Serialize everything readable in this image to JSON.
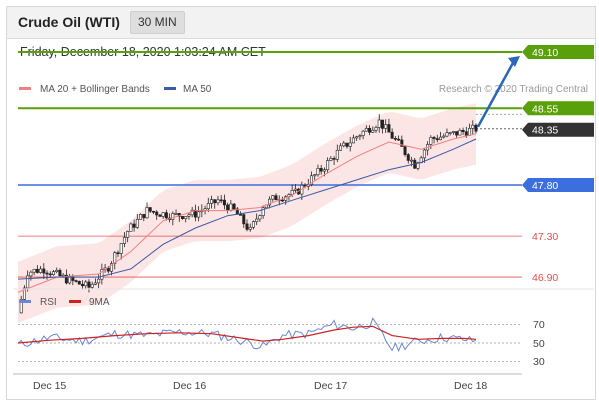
{
  "header": {
    "title": "Crude Oil (WTI)",
    "interval": "30 MIN"
  },
  "datetime": "Friday, December 18, 2020 1:03:24 AM CET",
  "legend": {
    "item1": "MA 20 + Bollinger Bands",
    "item2": "MA 50",
    "credit": "Research © 2020 Trading Central"
  },
  "colors": {
    "ma20": "#f08080",
    "bands": "#fbdcdc",
    "ma50": "#3b5aa8",
    "support": "#3b6fe0",
    "resistance": "#5aa00a",
    "red_level": "#e05050",
    "rsi": "#6a86d8",
    "rsi_ma": "#cc2222",
    "arrow": "#2c66b8"
  },
  "levels": {
    "r2": {
      "label": "49.10"
    },
    "r1": {
      "label": "48.55"
    },
    "last": {
      "label": "48.35"
    },
    "s1": {
      "label": "47.80"
    },
    "s2": {
      "label": "47.30"
    },
    "s3": {
      "label": "46.90"
    }
  },
  "rsi_legend": {
    "item1": "RSI",
    "item2": "9MA"
  },
  "rsi_ticks": [
    "70",
    "50",
    "30"
  ],
  "x_labels": [
    "Dec 15",
    "Dec 16",
    "Dec 17",
    "Dec 18"
  ],
  "chart_data": {
    "type": "candlestick",
    "instrument": "Crude Oil (WTI)",
    "interval": "30 MIN",
    "x": [
      "Dec 15",
      "Dec 16",
      "Dec 17",
      "Dec 18"
    ],
    "price_levels": [
      49.1,
      48.55,
      48.35,
      47.8,
      47.3,
      46.9
    ],
    "price_path": [
      [
        0,
        46.55
      ],
      [
        3,
        46.95
      ],
      [
        8,
        46.98
      ],
      [
        15,
        46.88
      ],
      [
        22,
        46.8
      ],
      [
        28,
        47.0
      ],
      [
        34,
        47.35
      ],
      [
        40,
        47.55
      ],
      [
        48,
        47.5
      ],
      [
        55,
        47.52
      ],
      [
        62,
        47.65
      ],
      [
        67,
        47.55
      ],
      [
        72,
        47.35
      ],
      [
        76,
        47.6
      ],
      [
        80,
        47.68
      ],
      [
        86,
        47.72
      ],
      [
        94,
        47.95
      ],
      [
        100,
        48.15
      ],
      [
        106,
        48.3
      ],
      [
        112,
        48.42
      ],
      [
        118,
        48.2
      ],
      [
        123,
        48.0
      ],
      [
        128,
        48.25
      ],
      [
        135,
        48.3
      ],
      [
        142,
        48.35
      ]
    ],
    "ma20_path": [
      [
        0,
        46.75
      ],
      [
        12,
        46.9
      ],
      [
        25,
        46.93
      ],
      [
        35,
        47.15
      ],
      [
        45,
        47.45
      ],
      [
        55,
        47.55
      ],
      [
        65,
        47.55
      ],
      [
        75,
        47.58
      ],
      [
        85,
        47.7
      ],
      [
        95,
        47.9
      ],
      [
        105,
        48.08
      ],
      [
        115,
        48.22
      ],
      [
        125,
        48.15
      ],
      [
        135,
        48.25
      ],
      [
        142,
        48.3
      ]
    ],
    "ma50_path": [
      [
        0,
        46.88
      ],
      [
        12,
        46.9
      ],
      [
        25,
        46.9
      ],
      [
        35,
        46.98
      ],
      [
        45,
        47.22
      ],
      [
        55,
        47.38
      ],
      [
        65,
        47.5
      ],
      [
        75,
        47.55
      ],
      [
        85,
        47.65
      ],
      [
        95,
        47.75
      ],
      [
        105,
        47.85
      ],
      [
        115,
        47.95
      ],
      [
        125,
        48.02
      ],
      [
        135,
        48.15
      ],
      [
        142,
        48.25
      ]
    ],
    "bollinger_width": 0.3,
    "rsi": {
      "ticks": [
        70,
        50,
        30
      ],
      "rsi_path": [
        [
          0,
          48
        ],
        [
          10,
          56
        ],
        [
          20,
          52
        ],
        [
          30,
          60
        ],
        [
          40,
          58
        ],
        [
          50,
          62
        ],
        [
          60,
          60
        ],
        [
          70,
          52
        ],
        [
          76,
          46
        ],
        [
          82,
          58
        ],
        [
          90,
          60
        ],
        [
          98,
          70
        ],
        [
          104,
          66
        ],
        [
          110,
          72
        ],
        [
          116,
          44
        ],
        [
          124,
          52
        ],
        [
          132,
          56
        ],
        [
          138,
          54
        ],
        [
          142,
          52
        ]
      ],
      "ma_path": [
        [
          0,
          50
        ],
        [
          10,
          53
        ],
        [
          20,
          55
        ],
        [
          30,
          58
        ],
        [
          40,
          60
        ],
        [
          50,
          61
        ],
        [
          60,
          60
        ],
        [
          70,
          55
        ],
        [
          76,
          52
        ],
        [
          82,
          54
        ],
        [
          90,
          58
        ],
        [
          98,
          64
        ],
        [
          104,
          67
        ],
        [
          110,
          68
        ],
        [
          116,
          58
        ],
        [
          124,
          54
        ],
        [
          132,
          55
        ],
        [
          138,
          55
        ],
        [
          142,
          54
        ]
      ]
    },
    "forecast_arrow": {
      "from": 48.35,
      "to": 49.1
    }
  }
}
